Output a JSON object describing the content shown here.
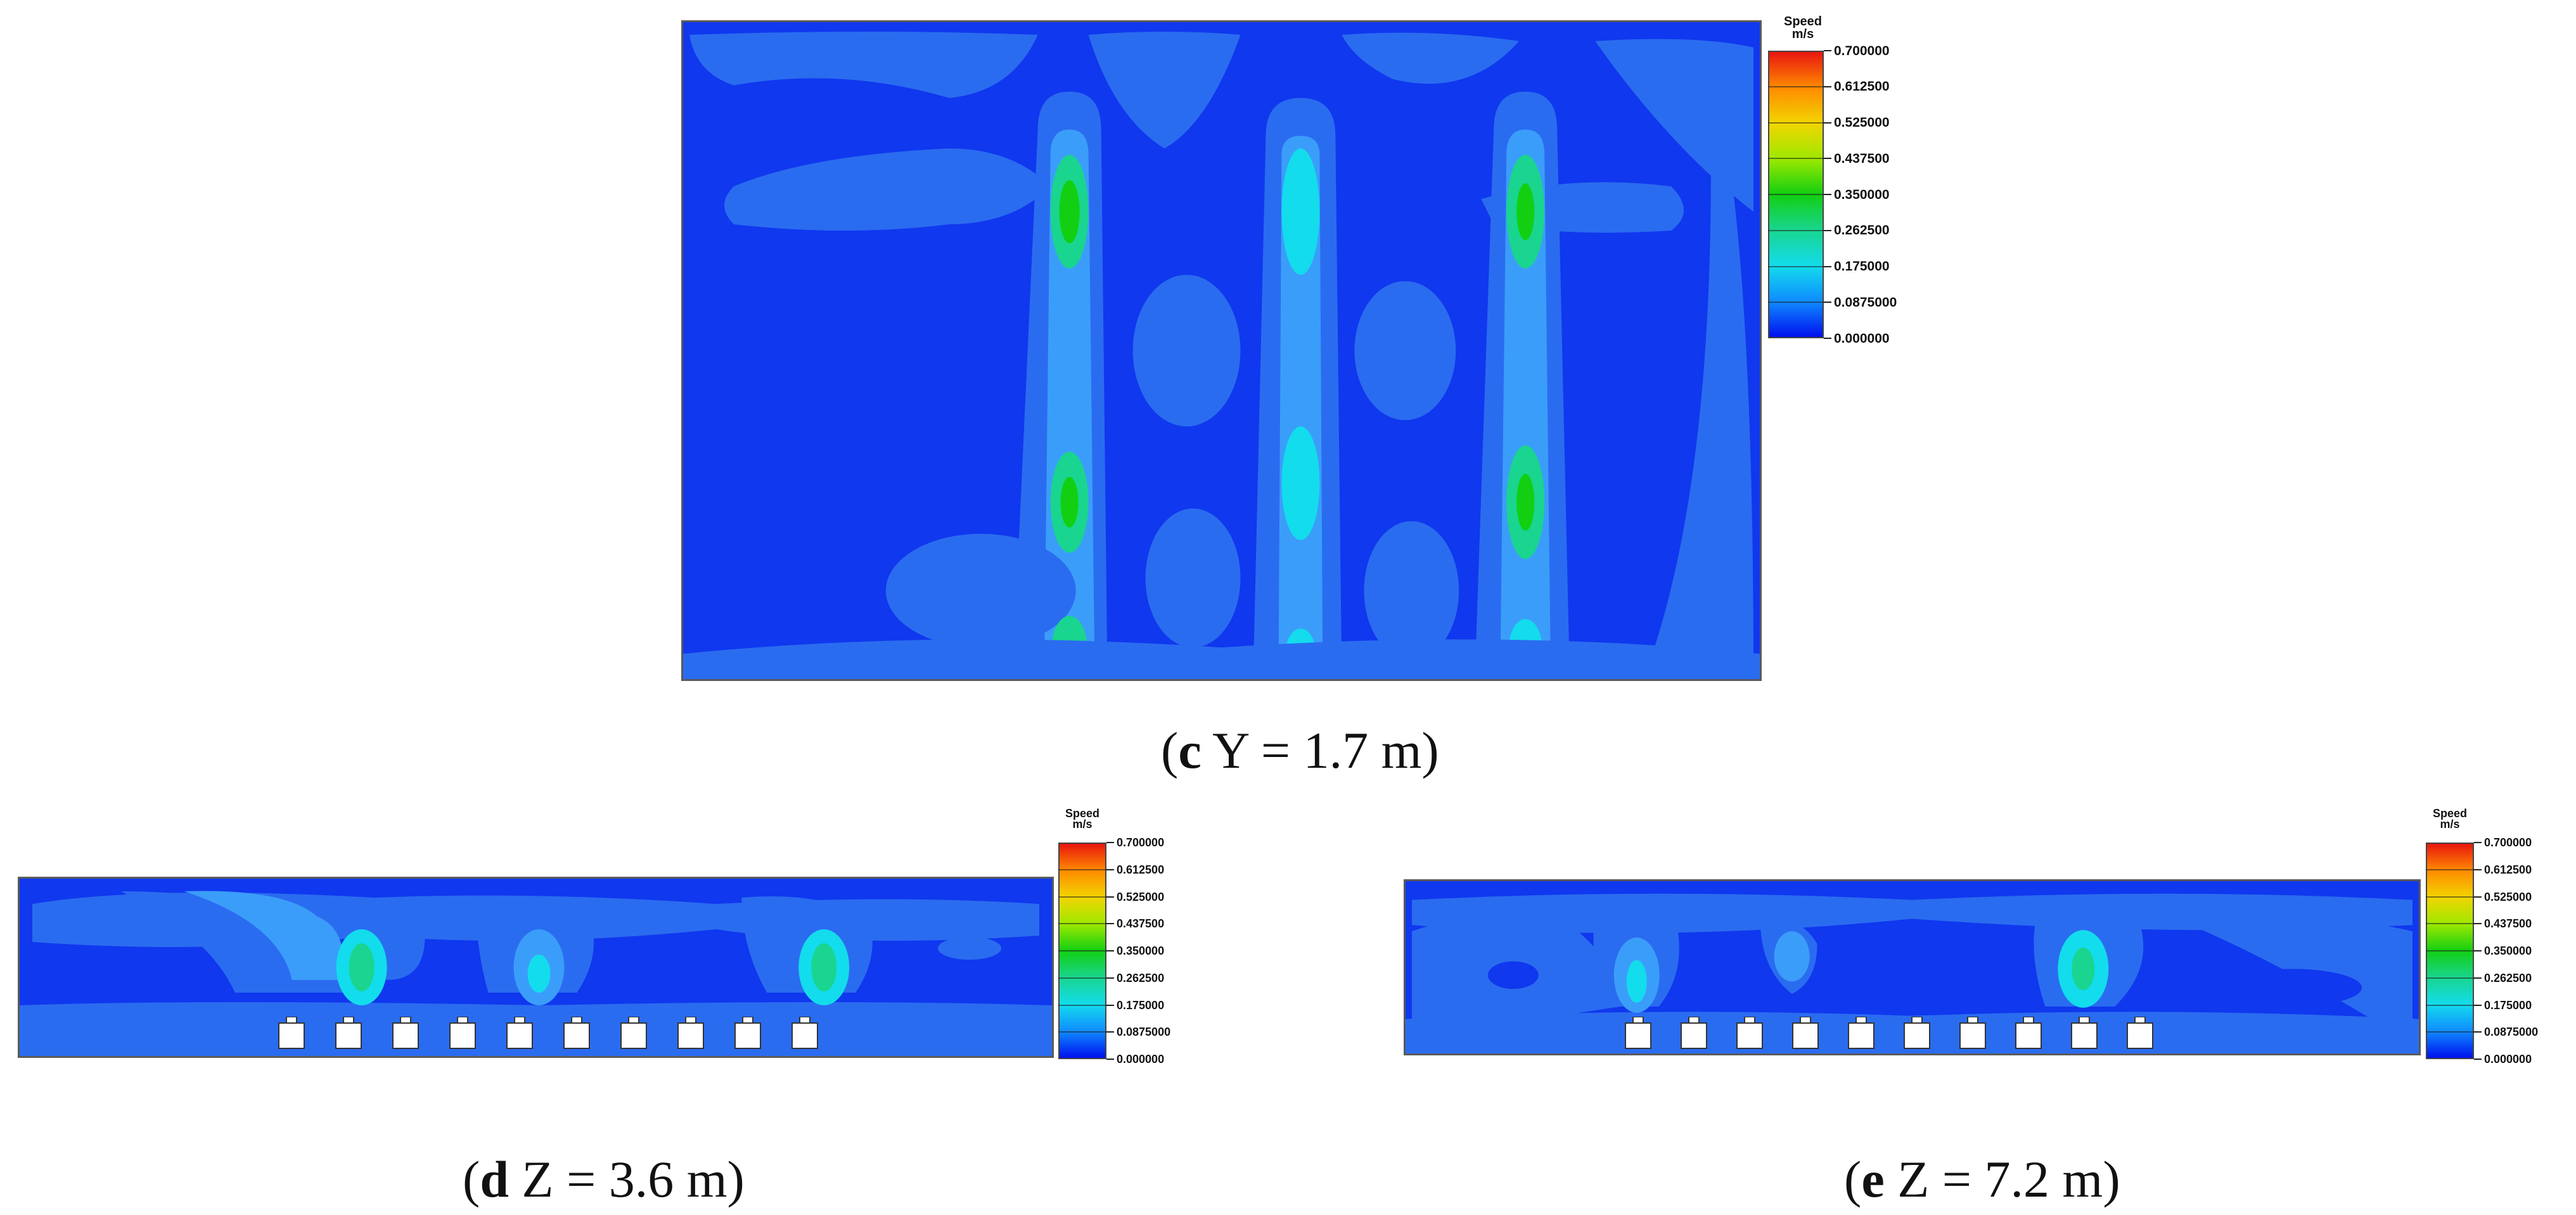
{
  "legend": {
    "title": "Speed",
    "unit": "m/s",
    "ticks": [
      "0.700000",
      "0.612500",
      "0.525000",
      "0.437500",
      "0.350000",
      "0.262500",
      "0.175000",
      "0.0875000",
      "0.000000"
    ],
    "colors": [
      "#e8160f",
      "#ff8a00",
      "#f2d500",
      "#9de800",
      "#12cf12",
      "#19d58f",
      "#13dcec",
      "#0f8bff",
      "#0010ee"
    ]
  },
  "panels": [
    {
      "id": "c",
      "letter": "c",
      "caption_rest": " Y = 1.7 m"
    },
    {
      "id": "d",
      "letter": "d",
      "caption_rest": " Z = 3.6 m"
    },
    {
      "id": "e",
      "letter": "e",
      "caption_rest": " Z = 7.2 m"
    }
  ]
}
